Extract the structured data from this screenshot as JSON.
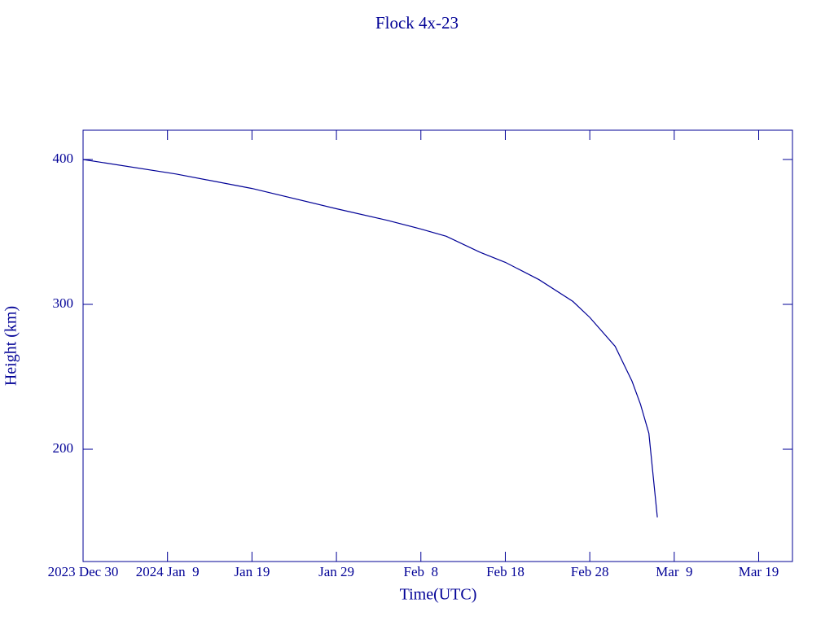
{
  "chart_data": {
    "type": "line",
    "title": "Flock 4x-23",
    "x_label": "Time(UTC)",
    "y_label": "Height (km)",
    "color": "#000096",
    "x": [
      "2023-12-30",
      "2024-01-10",
      "2024-01-19",
      "2024-01-29",
      "2024-02-04",
      "2024-02-08",
      "2024-02-11",
      "2024-02-15",
      "2024-02-18",
      "2024-02-22",
      "2024-02-26",
      "2024-02-28",
      "2024-03-02",
      "2024-03-04",
      "2024-03-05",
      "2024-03-06",
      "2024-03-07"
    ],
    "values": [
      400,
      390,
      380,
      366,
      358,
      352,
      347,
      336,
      329,
      317,
      302,
      291,
      271,
      247,
      231,
      211,
      153
    ],
    "xlim": [
      "2023-12-30",
      "2024-03-23"
    ],
    "xticks": [
      {
        "value": "2023-12-30",
        "label": "2023 Dec 30"
      },
      {
        "value": "2024-01-09",
        "label": "2024 Jan  9"
      },
      {
        "value": "2024-01-19",
        "label": "Jan 19"
      },
      {
        "value": "2024-01-29",
        "label": "Jan 29"
      },
      {
        "value": "2024-02-08",
        "label": "Feb  8"
      },
      {
        "value": "2024-02-18",
        "label": "Feb 18"
      },
      {
        "value": "2024-02-28",
        "label": "Feb 28"
      },
      {
        "value": "2024-03-09",
        "label": "Mar  9"
      },
      {
        "value": "2024-03-19",
        "label": "Mar 19"
      }
    ],
    "ylim": [
      122.5,
      420.2
    ],
    "yticks": [
      200,
      300,
      400
    ]
  }
}
